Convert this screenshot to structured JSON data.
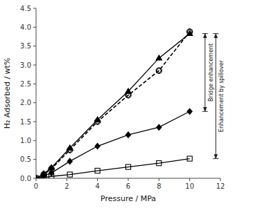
{
  "chart_data": {
    "type": "line",
    "xlabel": "Pressure / MPa",
    "ylabel": "H₂ Adsorbed / wt%",
    "xlim": [
      0,
      12.0
    ],
    "ylim": [
      0,
      4.5
    ],
    "xticks": [
      0,
      2,
      4,
      6,
      8,
      10,
      12
    ],
    "yticks": [
      {
        "value": 0,
        "label": "0.0"
      },
      {
        "value": 0.5,
        "label": "0.5"
      },
      {
        "value": 1.0,
        "label": "1.0"
      },
      {
        "value": 1.5,
        "label": "1.5"
      },
      {
        "value": 2.0,
        "label": "2.0"
      },
      {
        "value": 2.5,
        "label": "2.5"
      },
      {
        "value": 3.0,
        "label": "3.0"
      },
      {
        "value": 3.5,
        "label": "3.5"
      },
      {
        "value": 4.0,
        "label": "4.0"
      },
      {
        "value": 4.5,
        "label": "4.5"
      }
    ],
    "grid": false,
    "x": [
      0.0,
      0.5,
      1.0,
      2.2,
      4.0,
      6.0,
      8.0,
      10.0
    ],
    "series": [
      {
        "color": "black",
        "marker": "square-open",
        "line_style": "solid",
        "values": [
          0.0,
          0.02,
          0.05,
          0.1,
          0.2,
          0.3,
          0.4,
          0.52
        ]
      },
      {
        "color": "black",
        "marker": "diamond",
        "line_style": "solid",
        "values": [
          0.0,
          0.07,
          0.14,
          0.45,
          0.85,
          1.15,
          1.35,
          1.77
        ]
      },
      {
        "color": "black",
        "marker": "circle-open",
        "line_style": "dashed",
        "values": [
          0.0,
          0.1,
          0.25,
          0.75,
          1.5,
          2.2,
          2.85,
          3.88
        ]
      },
      {
        "color": "black",
        "marker": "triangle",
        "line_style": "solid",
        "values": [
          0.0,
          0.12,
          0.28,
          0.8,
          1.55,
          2.3,
          3.18,
          3.83
        ]
      },
      {
        "color": "black",
        "marker": "diamond-open",
        "line_style": "dashed",
        "values": [
          0.0,
          0.1,
          0.25,
          0.75,
          1.5,
          2.2,
          2.85,
          3.88
        ]
      }
    ],
    "annotations": [
      {
        "text": "Bridge enhancement",
        "x": 11.0,
        "y_top": 3.83,
        "y_bottom": 1.77
      },
      {
        "text": "Enhancement by spillover",
        "x": 11.7,
        "y_top": 3.83,
        "y_bottom": 0.52
      }
    ]
  }
}
